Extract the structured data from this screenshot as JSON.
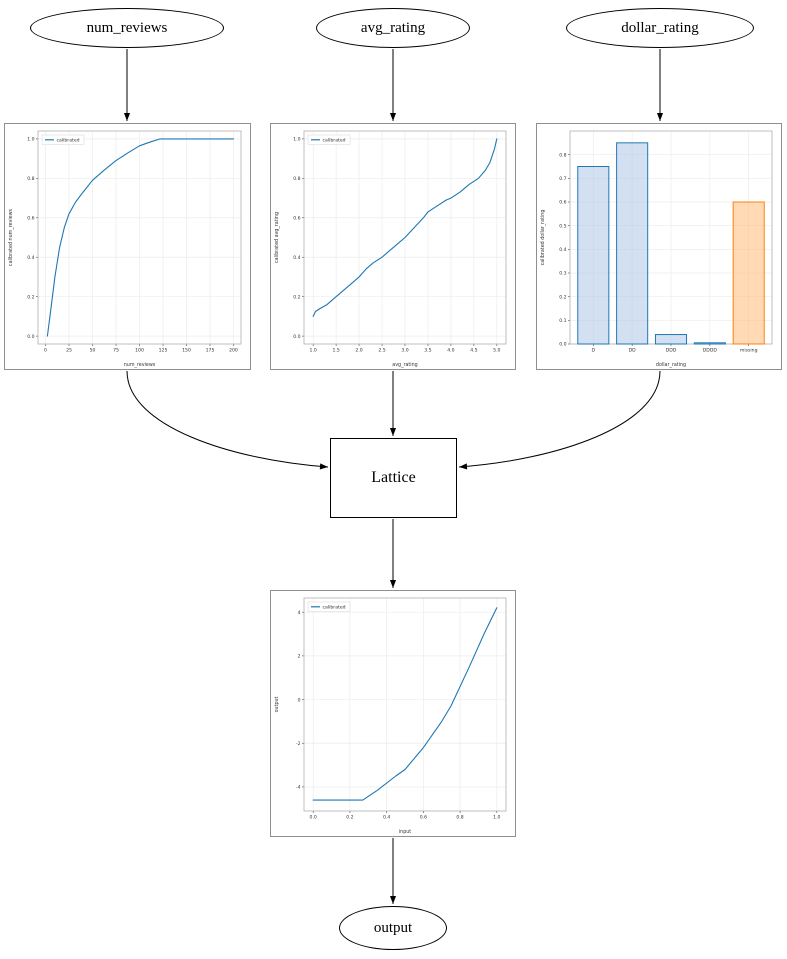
{
  "diagram": {
    "nodes": {
      "num_reviews": {
        "label": "num_reviews"
      },
      "avg_rating": {
        "label": "avg_rating"
      },
      "dollar_rating": {
        "label": "dollar_rating"
      },
      "lattice": {
        "label": "Lattice"
      },
      "output": {
        "label": "output"
      }
    }
  },
  "colors": {
    "calibrated_line": "#1f77b4",
    "bar_blue_fill": "#aec7e8",
    "bar_blue_edge": "#1f77b4",
    "bar_orange_fill": "#ffbb78",
    "bar_orange_edge": "#ff7f0e",
    "edge_stroke": "#000000"
  },
  "chart_data": [
    {
      "id": "cal_num_reviews",
      "type": "line",
      "title": "",
      "xlabel": "num_reviews",
      "ylabel": "calibrated num_reviews",
      "legend": "calibrated",
      "legend_position": "upper left",
      "line_color": "#1f77b4",
      "grid": true,
      "xlim": [
        -8,
        208
      ],
      "ylim": [
        -0.04,
        1.04
      ],
      "xticks": {
        "values": [
          0,
          25,
          50,
          75,
          100,
          125,
          150,
          175,
          200
        ],
        "labels": [
          "0",
          "25",
          "50",
          "75",
          "100",
          "125",
          "150",
          "175",
          "200"
        ]
      },
      "yticks": {
        "values": [
          0.0,
          0.2,
          0.4,
          0.6,
          0.8,
          1.0
        ],
        "labels": [
          "0.0",
          "0.2",
          "0.4",
          "0.6",
          "0.8",
          "1.0"
        ]
      },
      "x": [
        2,
        6,
        10,
        15,
        20,
        25,
        32,
        40,
        50,
        62,
        75,
        88,
        100,
        112,
        122,
        150,
        175,
        200
      ],
      "y": [
        0.0,
        0.15,
        0.3,
        0.45,
        0.55,
        0.62,
        0.68,
        0.73,
        0.79,
        0.84,
        0.89,
        0.93,
        0.965,
        0.985,
        1.0,
        1.0,
        1.0,
        1.0
      ]
    },
    {
      "id": "cal_avg_rating",
      "type": "line",
      "title": "",
      "xlabel": "avg_rating",
      "ylabel": "calibrated avg_rating",
      "legend": "calibrated",
      "legend_position": "upper left",
      "line_color": "#1f77b4",
      "grid": true,
      "xlim": [
        0.8,
        5.2
      ],
      "ylim": [
        -0.04,
        1.04
      ],
      "xticks": {
        "values": [
          1.0,
          1.5,
          2.0,
          2.5,
          3.0,
          3.5,
          4.0,
          4.5,
          5.0
        ],
        "labels": [
          "1.0",
          "1.5",
          "2.0",
          "2.5",
          "3.0",
          "3.5",
          "4.0",
          "4.5",
          "5.0"
        ]
      },
      "yticks": {
        "values": [
          0.0,
          0.2,
          0.4,
          0.6,
          0.8,
          1.0
        ],
        "labels": [
          "0.0",
          "0.2",
          "0.4",
          "0.6",
          "0.8",
          "1.0"
        ]
      },
      "x": [
        1.0,
        1.05,
        1.15,
        1.3,
        1.5,
        1.7,
        1.9,
        2.0,
        2.15,
        2.3,
        2.5,
        2.7,
        2.9,
        3.0,
        3.2,
        3.4,
        3.5,
        3.7,
        3.9,
        4.0,
        4.2,
        4.4,
        4.6,
        4.75,
        4.85,
        4.95,
        5.0
      ],
      "y": [
        0.1,
        0.125,
        0.14,
        0.16,
        0.2,
        0.24,
        0.28,
        0.3,
        0.34,
        0.37,
        0.4,
        0.44,
        0.48,
        0.5,
        0.55,
        0.6,
        0.63,
        0.66,
        0.69,
        0.7,
        0.73,
        0.77,
        0.8,
        0.84,
        0.88,
        0.95,
        1.0
      ]
    },
    {
      "id": "cal_dollar_rating",
      "type": "bar",
      "title": "",
      "xlabel": "dollar_rating",
      "ylabel": "calibrated dollar_rating",
      "grid": true,
      "categories": [
        "D",
        "DD",
        "DDD",
        "DDDD",
        "missing"
      ],
      "values": [
        0.75,
        0.85,
        0.04,
        0.005,
        0.6
      ],
      "bar_fill": [
        "#aec7e8",
        "#aec7e8",
        "#aec7e8",
        "#aec7e8",
        "#ffbb78"
      ],
      "bar_edge": [
        "#1f77b4",
        "#1f77b4",
        "#1f77b4",
        "#1f77b4",
        "#ff7f0e"
      ],
      "ylim": [
        0,
        0.9
      ],
      "yticks": {
        "values": [
          0.0,
          0.1,
          0.2,
          0.3,
          0.4,
          0.5,
          0.6,
          0.7,
          0.8
        ],
        "labels": [
          "0.0",
          "0.1",
          "0.2",
          "0.3",
          "0.4",
          "0.5",
          "0.6",
          "0.7",
          "0.8"
        ]
      }
    },
    {
      "id": "output_fn",
      "type": "line",
      "title": "",
      "xlabel": "input",
      "ylabel": "output",
      "legend": "calibrated",
      "legend_position": "upper left",
      "line_color": "#1f77b4",
      "grid": true,
      "xlim": [
        -0.05,
        1.05
      ],
      "ylim": [
        -5.1,
        4.65
      ],
      "xticks": {
        "values": [
          0.0,
          0.2,
          0.4,
          0.6,
          0.8,
          1.0
        ],
        "labels": [
          "0.0",
          "0.2",
          "0.4",
          "0.6",
          "0.8",
          "1.0"
        ]
      },
      "yticks": {
        "values": [
          -4,
          -2,
          0,
          2,
          4
        ],
        "labels": [
          "-4",
          "-2",
          "0",
          "2",
          "4"
        ]
      },
      "x": [
        0.0,
        0.1,
        0.2,
        0.27,
        0.35,
        0.45,
        0.5,
        0.6,
        0.7,
        0.75,
        0.85,
        0.93,
        1.0
      ],
      "y": [
        -4.6,
        -4.6,
        -4.6,
        -4.6,
        -4.15,
        -3.5,
        -3.2,
        -2.2,
        -1.0,
        -0.3,
        1.5,
        3.0,
        4.2
      ]
    }
  ]
}
